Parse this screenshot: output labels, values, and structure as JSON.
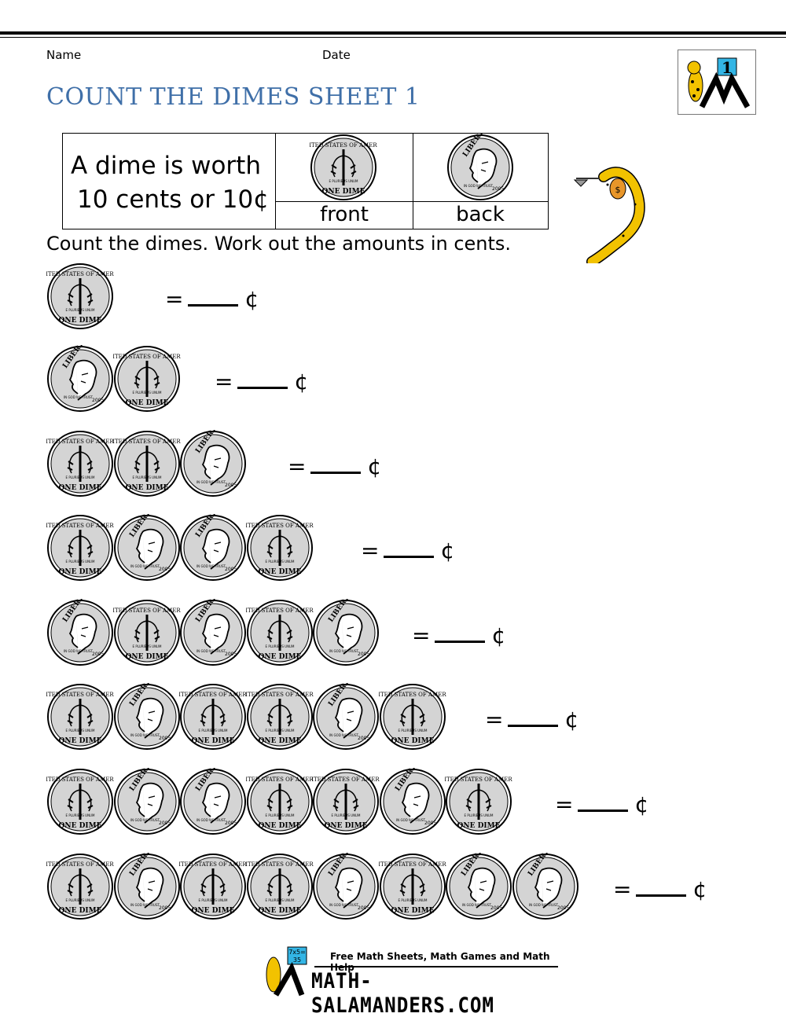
{
  "header": {
    "name_label": "Name",
    "date_label": "Date",
    "title": "COUNT THE DIMES SHEET 1",
    "badge_number": "1"
  },
  "info": {
    "line1": "A dime is worth",
    "line2": "10 cents or 10¢",
    "front_label": "front",
    "back_label": "back"
  },
  "instructions": "Count the dimes. Work out the amounts in cents.",
  "questions": [
    {
      "coins": [
        "front"
      ],
      "equals": "=",
      "unit": "¢"
    },
    {
      "coins": [
        "back",
        "front"
      ],
      "equals": "=",
      "unit": "¢"
    },
    {
      "coins": [
        "front",
        "front",
        "back"
      ],
      "equals": "=",
      "unit": "¢"
    },
    {
      "coins": [
        "front",
        "back",
        "back",
        "front"
      ],
      "equals": "=",
      "unit": "¢"
    },
    {
      "coins": [
        "back",
        "front",
        "back",
        "front",
        "back"
      ],
      "equals": "=",
      "unit": "¢"
    },
    {
      "coins": [
        "front",
        "back",
        "front",
        "front",
        "back",
        "front"
      ],
      "equals": "=",
      "unit": "¢"
    },
    {
      "coins": [
        "front",
        "back",
        "back",
        "front",
        "front",
        "back",
        "front"
      ],
      "equals": "=",
      "unit": "¢"
    },
    {
      "coins": [
        "front",
        "back",
        "front",
        "front",
        "back",
        "front",
        "back",
        "back"
      ],
      "equals": "=",
      "unit": "¢"
    }
  ],
  "footer": {
    "tagline": "Free Math Sheets, Math Games and Math Help",
    "site": "MATH-SALAMANDERS.COM",
    "board_text": "7x5=35"
  },
  "colors": {
    "title": "#3f6fa8",
    "coin": "#d4d4d4",
    "salamander": "#f2c200",
    "board": "#33b5e5"
  }
}
